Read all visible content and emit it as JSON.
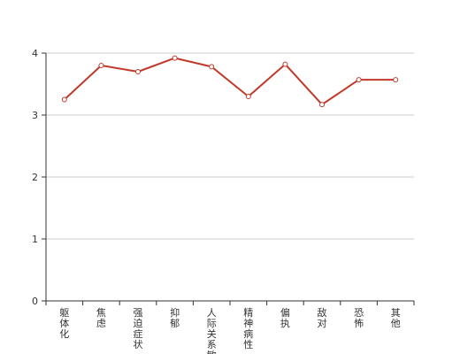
{
  "chart_data": {
    "type": "line",
    "categories": [
      "躯体化",
      "焦虑",
      "强迫症状",
      "抑郁",
      "人际关系敏感",
      "精神病性",
      "偏执",
      "敌对",
      "恐怖",
      "其他"
    ],
    "series": [
      {
        "values": [
          3.25,
          3.8,
          3.7,
          3.92,
          3.78,
          3.3,
          3.82,
          3.17,
          3.57,
          3.57
        ]
      }
    ],
    "y_ticks": [
      0,
      1,
      2,
      3,
      4
    ],
    "ylim": [
      0,
      4
    ],
    "grid": true,
    "line_color": "#c0392b",
    "grid_color": "#cccccc",
    "axis_color": "#333333"
  }
}
